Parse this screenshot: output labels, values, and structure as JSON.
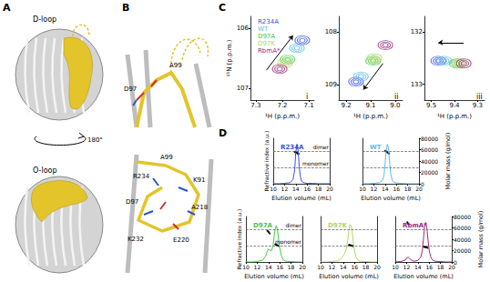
{
  "figure": {
    "panel_labels": [
      "A",
      "B",
      "C",
      "D"
    ],
    "A": {
      "labels": [
        "D-loop",
        "O-loop"
      ],
      "rotation": "180°"
    },
    "B": {
      "top_labels": [
        "A99",
        "D97"
      ],
      "bottom_labels": [
        "A99",
        "K91",
        "R234",
        "D97",
        "A218",
        "K232",
        "E220"
      ]
    }
  },
  "chart_data": [
    {
      "type": "scatter",
      "title": "i",
      "xlabel": "¹H (p.p.m.)",
      "ylabel": "¹⁵N (p.p.m.)",
      "xlim": [
        7.32,
        7.08
      ],
      "xticks": [
        7.3,
        7.2,
        7.1
      ],
      "ylim": [
        107.2,
        105.8
      ],
      "yticks": [
        106,
        107
      ],
      "legend": "upper left",
      "marker": "contour",
      "series": [
        {
          "name": "R234A",
          "color": "#3a4fe0",
          "x": [
            7.125
          ],
          "values": [
            106.2
          ]
        },
        {
          "name": "WT",
          "color": "#5bbbe8",
          "x": [
            7.145
          ],
          "values": [
            106.33
          ]
        },
        {
          "name": "D97A",
          "color": "#44c844",
          "x": [
            7.18
          ],
          "values": [
            106.52
          ]
        },
        {
          "name": "D97K",
          "color": "#b0d860",
          "x": [
            7.19
          ],
          "values": [
            106.58
          ]
        },
        {
          "name": "RbmA*",
          "color": "#9b2a7e",
          "x": [
            7.21
          ],
          "values": [
            106.68
          ]
        }
      ],
      "arrow": {
        "from": [
          7.26,
          106.7
        ],
        "to": [
          7.16,
          106.12
        ]
      }
    },
    {
      "type": "scatter",
      "title": "ii",
      "xlabel": "¹H (p.p.m.)",
      "xlim": [
        9.23,
        8.97
      ],
      "xticks": [
        9.2,
        9.1,
        {
          "value": 9,
          "label": "9.0"
        }
      ],
      "ylim": [
        109.3,
        107.7
      ],
      "yticks": [
        108,
        109
      ],
      "marker": "contour",
      "series": [
        {
          "color": "#3a4fe0",
          "x": [
            9.16
          ],
          "values": [
            108.95
          ]
        },
        {
          "color": "#5bbbe8",
          "x": [
            9.14
          ],
          "values": [
            108.85
          ]
        },
        {
          "color": "#44c844",
          "x": [
            9.09
          ],
          "values": [
            108.55
          ]
        },
        {
          "color": "#b0d860",
          "x": [
            9.085
          ],
          "values": [
            108.5
          ]
        },
        {
          "color": "#9b2a7e",
          "x": [
            9.04
          ],
          "values": [
            108.25
          ]
        }
      ],
      "arrow": {
        "from": [
          9.05,
          108.6
        ],
        "to": [
          9.13,
          109.1
        ]
      }
    },
    {
      "type": "scatter",
      "title": "iii",
      "xlabel": "¹H (p.p.m.)",
      "xlim": [
        9.53,
        9.27
      ],
      "xticks": [
        9.5,
        9.4,
        9.3
      ],
      "ylim": [
        133.3,
        131.7
      ],
      "yticks": [
        132,
        133
      ],
      "marker": "contour",
      "series": [
        {
          "color": "#3a4fe0",
          "x": [
            9.47
          ],
          "values": [
            132.55
          ]
        },
        {
          "color": "#5bbbe8",
          "x": [
            9.445
          ],
          "values": [
            132.55
          ]
        },
        {
          "color": "#44c844",
          "x": [
            9.39
          ],
          "values": [
            132.6
          ]
        },
        {
          "color": "#b0d860",
          "x": [
            9.38
          ],
          "values": [
            132.6
          ]
        },
        {
          "color": "#9b2a7e",
          "x": [
            9.36
          ],
          "values": [
            132.6
          ]
        }
      ],
      "arrow": {
        "from": [
          9.36,
          132.2
        ],
        "to": [
          9.47,
          132.2
        ]
      }
    },
    {
      "type": "line",
      "title": "R234A",
      "color": "#3a4fe0",
      "xlabel": "Elution volume (mL)",
      "ylabel": "Refractive index (a.u.)",
      "xlim": [
        10,
        20
      ],
      "xticks": [
        10,
        12,
        14,
        16,
        18,
        20
      ],
      "ylim": [
        0,
        1.15
      ],
      "y2lim": [
        0,
        80000
      ],
      "series": [
        {
          "type": "line",
          "color": "#3a4fe0",
          "x": [
            10,
            11,
            12,
            13,
            13.5,
            13.8,
            14,
            14.2,
            14.4,
            14.6,
            14.8,
            15,
            15.3,
            15.6,
            16,
            17,
            18,
            19,
            20
          ],
          "values": [
            0,
            0,
            0.01,
            0.03,
            0.1,
            0.35,
            0.8,
            1.0,
            0.85,
            0.45,
            0.18,
            0.07,
            0.03,
            0.02,
            0.01,
            0.01,
            0,
            0,
            0
          ]
        },
        {
          "type": "scatter",
          "axis": "y2",
          "color": "#000000",
          "marker": "circle",
          "x": [
            13.8,
            13.9,
            14,
            14.1,
            14.2,
            14.3,
            14.4,
            14.5
          ],
          "values": [
            56000,
            55500,
            55000,
            54500,
            54000,
            53500,
            53000,
            52500
          ]
        }
      ],
      "reference_lines": [
        {
          "axis": "y2",
          "value": 58000,
          "label": "dimer",
          "line_style": "dashed"
        },
        {
          "axis": "y2",
          "value": 29000,
          "label": "monomer",
          "line_style": "dashed"
        }
      ]
    },
    {
      "type": "line",
      "title": "WT",
      "color": "#5bbbe8",
      "xlabel": "Elution volume (mL)",
      "y2label": "Molar mass (g/mol)",
      "xlim": [
        10,
        20
      ],
      "xticks": [
        10,
        12,
        14,
        16,
        18,
        20
      ],
      "ylim": [
        0,
        1.15
      ],
      "y2lim": [
        0,
        80000
      ],
      "y2ticks": [
        0,
        20000,
        40000,
        60000,
        80000
      ],
      "series": [
        {
          "type": "line",
          "color": "#5bbbe8",
          "x": [
            10,
            11,
            12,
            13,
            13.5,
            13.8,
            14,
            14.2,
            14.4,
            14.6,
            14.8,
            15,
            15.3,
            15.6,
            16,
            17,
            18,
            19,
            20
          ],
          "values": [
            0,
            0,
            0.01,
            0.03,
            0.08,
            0.2,
            0.5,
            0.85,
            1.0,
            0.9,
            0.55,
            0.25,
            0.08,
            0.03,
            0.02,
            0.01,
            0,
            0,
            0
          ]
        },
        {
          "type": "scatter",
          "axis": "y2",
          "color": "#000000",
          "marker": "circle",
          "x": [
            14,
            14.1,
            14.2,
            14.3,
            14.4,
            14.5,
            14.6,
            14.7
          ],
          "values": [
            58000,
            57500,
            57000,
            56000,
            55500,
            54500,
            54000,
            53000
          ]
        }
      ],
      "reference_lines": [
        {
          "axis": "y2",
          "value": 58000,
          "line_style": "dashed"
        },
        {
          "axis": "y2",
          "value": 29000,
          "line_style": "dashed"
        }
      ]
    },
    {
      "type": "line",
      "title": "D97A",
      "color": "#44c844",
      "xlabel": "Elution volume (mL)",
      "ylabel": "Refractive index (a.u.)",
      "xlim": [
        10,
        20
      ],
      "xticks": [
        10,
        12,
        14,
        16,
        18,
        20
      ],
      "ylim": [
        0,
        1.15
      ],
      "y2lim": [
        0,
        80000
      ],
      "series": [
        {
          "type": "line",
          "color": "#44c844",
          "x": [
            10,
            11,
            12,
            13,
            13.5,
            13.8,
            14,
            14.2,
            14.5,
            14.8,
            15,
            15.2,
            15.4,
            15.6,
            15.8,
            16,
            16.3,
            16.6,
            17,
            18,
            19,
            20
          ],
          "values": [
            0,
            0,
            0.01,
            0.05,
            0.15,
            0.28,
            0.33,
            0.3,
            0.28,
            0.4,
            0.65,
            0.85,
            0.92,
            0.8,
            0.55,
            0.35,
            0.15,
            0.06,
            0.02,
            0.01,
            0,
            0
          ]
        },
        {
          "type": "scatter",
          "axis": "y2",
          "color": "#000000",
          "marker": "circle",
          "x": [
            13.8,
            13.9,
            14,
            14.1,
            14.2,
            15.2,
            15.3,
            15.4,
            15.5,
            15.6,
            15.7,
            15.8
          ],
          "values": [
            55000,
            54000,
            53000,
            51500,
            50000,
            31000,
            30500,
            30000,
            29500,
            29000,
            28500,
            28000
          ]
        }
      ],
      "reference_lines": [
        {
          "axis": "y2",
          "value": 58000,
          "label": "dimer",
          "line_style": "dashed"
        },
        {
          "axis": "y2",
          "value": 29000,
          "label": "monomer",
          "line_style": "dashed"
        }
      ]
    },
    {
      "type": "line",
      "title": "D97K",
      "color": "#b0d860",
      "xlabel": "Elution volume (mL)",
      "xlim": [
        10,
        20
      ],
      "xticks": [
        10,
        12,
        14,
        16,
        18,
        20
      ],
      "ylim": [
        0,
        1.15
      ],
      "y2lim": [
        0,
        80000
      ],
      "series": [
        {
          "type": "line",
          "color": "#b0d860",
          "x": [
            10,
            11,
            12,
            13,
            13.5,
            13.8,
            14,
            14.2,
            14.5,
            14.8,
            15,
            15.2,
            15.4,
            15.6,
            15.8,
            16,
            16.3,
            16.6,
            17,
            18,
            19,
            20
          ],
          "values": [
            0,
            0,
            0.01,
            0.03,
            0.07,
            0.12,
            0.16,
            0.2,
            0.3,
            0.55,
            0.8,
            0.95,
            0.92,
            0.75,
            0.5,
            0.3,
            0.12,
            0.05,
            0.02,
            0.01,
            0,
            0
          ]
        },
        {
          "type": "scatter",
          "axis": "y2",
          "color": "#000000",
          "marker": "circle",
          "x": [
            15,
            15.1,
            15.2,
            15.3,
            15.4,
            15.5,
            15.6,
            15.7
          ],
          "values": [
            30000,
            29800,
            29500,
            29200,
            29000,
            28700,
            28400,
            28000
          ]
        }
      ],
      "reference_lines": [
        {
          "axis": "y2",
          "value": 58000,
          "line_style": "dashed"
        },
        {
          "axis": "y2",
          "value": 29000,
          "line_style": "dashed"
        }
      ]
    },
    {
      "type": "line",
      "title": "RbmA*",
      "color": "#9b2a7e",
      "xlabel": "Elution volume (mL)",
      "y2label": "Molar mass (g/mol)",
      "xlim": [
        10,
        20
      ],
      "xticks": [
        10,
        12,
        14,
        16,
        18,
        20
      ],
      "ylim": [
        0,
        1.15
      ],
      "y2lim": [
        0,
        80000
      ],
      "y2ticks": [
        0,
        20000,
        40000,
        60000,
        80000
      ],
      "series": [
        {
          "type": "line",
          "color": "#9b2a7e",
          "x": [
            10,
            11,
            11.8,
            12,
            12.3,
            12.6,
            13,
            13.5,
            14,
            14.5,
            14.8,
            15,
            15.2,
            15.4,
            15.6,
            15.8,
            16,
            16.3,
            16.6,
            17,
            18,
            19,
            20
          ],
          "values": [
            0,
            0.01,
            0.05,
            0.1,
            0.12,
            0.08,
            0.03,
            0.02,
            0.04,
            0.12,
            0.3,
            0.6,
            0.9,
            1.0,
            0.85,
            0.55,
            0.3,
            0.12,
            0.05,
            0.02,
            0.01,
            0,
            0
          ]
        },
        {
          "type": "scatter",
          "axis": "y2",
          "color": "#000000",
          "marker": "circle",
          "x": [
            12.1,
            12.2,
            12.3,
            12.4,
            15,
            15.1,
            15.2,
            15.3,
            15.4,
            15.5,
            15.6,
            15.7
          ],
          "values": [
            70000,
            68500,
            67000,
            66000,
            27000,
            26800,
            26500,
            26200,
            26000,
            25700,
            25400,
            25000
          ]
        }
      ],
      "reference_lines": [
        {
          "axis": "y2",
          "value": 58000,
          "line_style": "dashed"
        },
        {
          "axis": "y2",
          "value": 29000,
          "line_style": "dashed"
        }
      ]
    }
  ]
}
